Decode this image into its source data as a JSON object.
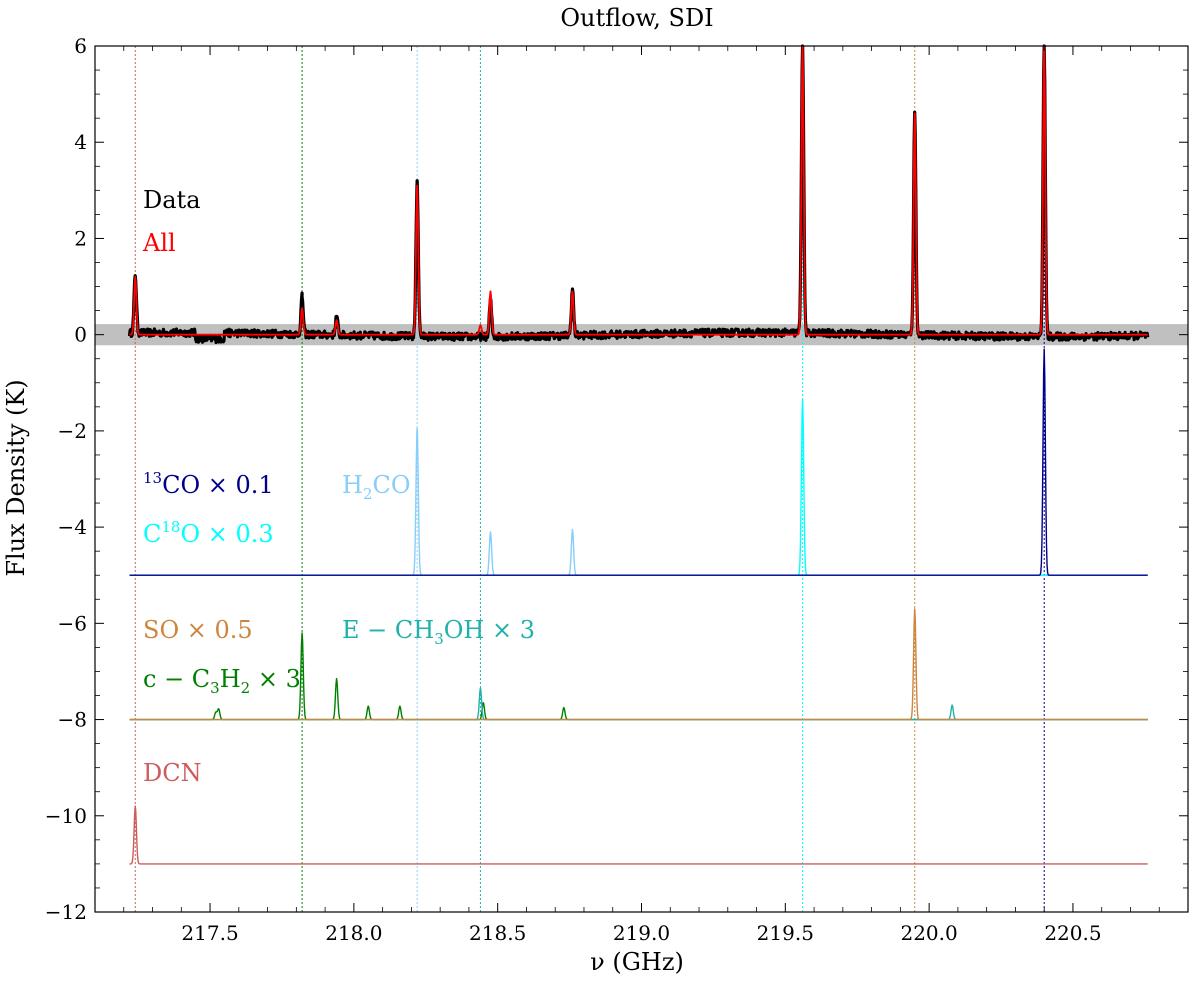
{
  "chart_data": {
    "type": "line",
    "title": "Outflow, SDI",
    "xlabel": "ν (GHz)",
    "ylabel": "Flux Density (K)",
    "xlim": [
      217.1,
      220.9
    ],
    "ylim": [
      -12,
      6
    ],
    "xticks": [
      217.5,
      218.0,
      218.5,
      219.0,
      219.5,
      220.0,
      220.5
    ],
    "xtick_labels": [
      "217.5",
      "218.0",
      "218.5",
      "219.0",
      "219.5",
      "220.0",
      "220.5"
    ],
    "yticks": [
      6,
      4,
      2,
      0,
      -2,
      -4,
      -6,
      -8,
      -10,
      -12
    ],
    "ytick_labels": [
      "6",
      "4",
      "2",
      "0",
      "−2",
      "−4",
      "−6",
      "−8",
      "−10",
      "−12"
    ],
    "x_range_data": [
      217.22,
      220.76
    ],
    "noise_band": [
      -0.22,
      0.22
    ],
    "colors": {
      "data": "#000000",
      "all": "#ff0000",
      "co13": "#00008b",
      "c18o": "#00ffff",
      "h2co": "#87cefa",
      "so": "#cd853f",
      "ch3oh": "#20b2aa",
      "c3h2": "#008000",
      "dcn": "#cd5c5c",
      "band": "#c0c0c0"
    },
    "legend": [
      {
        "key": "data",
        "label": "Data",
        "color": "#000000"
      },
      {
        "key": "all",
        "label": "All",
        "color": "#ff0000"
      },
      {
        "key": "co13",
        "sup": "13",
        "label": "CO × 0.1",
        "color": "#00008b"
      },
      {
        "key": "h2co",
        "label": "H",
        "sub": "2",
        "label2": "CO",
        "color": "#87cefa"
      },
      {
        "key": "c18o",
        "label": "C",
        "sup": "18",
        "label2": "O × 0.3",
        "color": "#00ffff"
      },
      {
        "key": "so",
        "label": "SO × 0.5",
        "color": "#cd853f"
      },
      {
        "key": "ch3oh",
        "label": "E − CH",
        "sub": "3",
        "label2": "OH × 3",
        "color": "#20b2aa"
      },
      {
        "key": "c3h2",
        "label": "c − C",
        "sub": "3",
        "label2": "H",
        "sub2": "2",
        "label3": " × 3",
        "color": "#008000"
      },
      {
        "key": "dcn",
        "label": "DCN",
        "color": "#cd5c5c"
      }
    ],
    "vlines": [
      {
        "x": 217.24,
        "color": "#cd5c5c"
      },
      {
        "x": 217.82,
        "color": "#008000"
      },
      {
        "x": 218.22,
        "color": "#87cefa"
      },
      {
        "x": 218.44,
        "color": "#20b2aa"
      },
      {
        "x": 219.56,
        "color": "#00ffff"
      },
      {
        "x": 219.95,
        "color": "#cd853f"
      },
      {
        "x": 220.4,
        "color": "#00008b"
      }
    ],
    "series": [
      {
        "name": "Data",
        "key": "data",
        "baseline": 0,
        "noise": 0.08,
        "lines": [
          {
            "x": 217.24,
            "peak": 1.22
          },
          {
            "x": 217.82,
            "peak": 0.78
          },
          {
            "x": 217.94,
            "peak": 0.38
          },
          {
            "x": 218.22,
            "peak": 3.2
          },
          {
            "x": 218.475,
            "peak": 0.75
          },
          {
            "x": 218.76,
            "peak": 0.95
          },
          {
            "x": 219.56,
            "peak": 6.0
          },
          {
            "x": 219.95,
            "peak": 4.6
          },
          {
            "x": 220.4,
            "peak": 6.0
          }
        ]
      },
      {
        "name": "All",
        "key": "all",
        "baseline": 0,
        "lines": [
          {
            "x": 217.24,
            "peak": 1.2
          },
          {
            "x": 217.82,
            "peak": 0.55
          },
          {
            "x": 217.94,
            "peak": 0.3
          },
          {
            "x": 218.22,
            "peak": 3.1
          },
          {
            "x": 218.44,
            "peak": 0.2
          },
          {
            "x": 218.475,
            "peak": 0.9
          },
          {
            "x": 218.76,
            "peak": 0.9
          },
          {
            "x": 219.56,
            "peak": 6.0
          },
          {
            "x": 219.95,
            "peak": 4.6
          },
          {
            "x": 220.4,
            "peak": 6.0
          }
        ]
      },
      {
        "name": "H2CO",
        "key": "h2co",
        "baseline": -5,
        "lines": [
          {
            "x": 218.22,
            "peak": -1.95
          },
          {
            "x": 218.475,
            "peak": -4.1
          },
          {
            "x": 218.76,
            "peak": -4.05
          }
        ]
      },
      {
        "name": "C18O",
        "key": "c18o",
        "baseline": -5,
        "lines": [
          {
            "x": 219.56,
            "peak": -1.35
          }
        ]
      },
      {
        "name": "13CO",
        "key": "co13",
        "baseline": -5,
        "lines": [
          {
            "x": 220.4,
            "peak": -0.3
          }
        ]
      },
      {
        "name": "c-C3H2",
        "key": "c3h2",
        "baseline": -8,
        "lines": [
          {
            "x": 217.52,
            "peak": -7.85
          },
          {
            "x": 217.53,
            "peak": -7.78
          },
          {
            "x": 217.82,
            "peak": -6.2
          },
          {
            "x": 217.94,
            "peak": -7.15
          },
          {
            "x": 218.05,
            "peak": -7.72
          },
          {
            "x": 218.16,
            "peak": -7.72
          },
          {
            "x": 218.45,
            "peak": -7.65
          },
          {
            "x": 218.73,
            "peak": -7.75
          }
        ]
      },
      {
        "name": "E-CH3OH",
        "key": "ch3oh",
        "baseline": -8,
        "lines": [
          {
            "x": 218.44,
            "peak": -7.35
          },
          {
            "x": 220.08,
            "peak": -7.7
          }
        ]
      },
      {
        "name": "SO",
        "key": "so",
        "baseline": -8,
        "lines": [
          {
            "x": 219.95,
            "peak": -5.7
          }
        ]
      },
      {
        "name": "DCN",
        "key": "dcn",
        "baseline": -11,
        "lines": [
          {
            "x": 217.24,
            "peak": -9.8
          }
        ]
      }
    ]
  }
}
